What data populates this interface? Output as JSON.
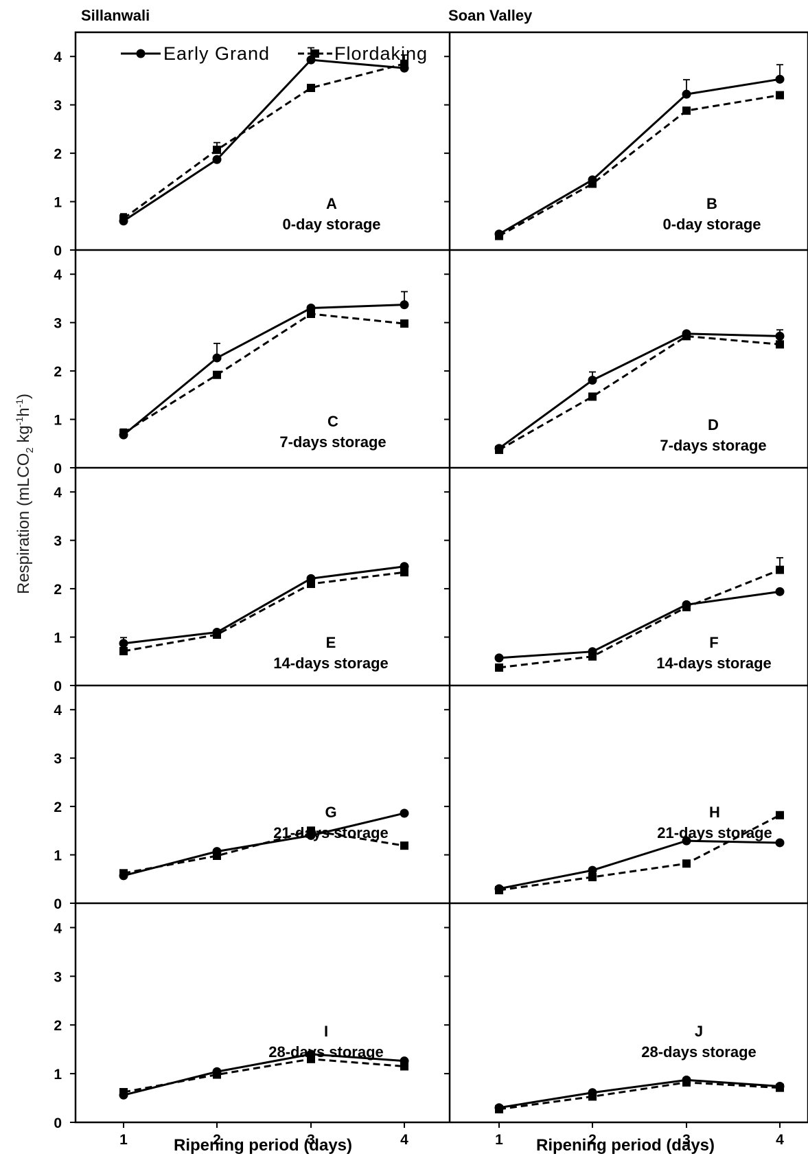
{
  "figure": {
    "ylabel_main": "Respiration (mLCO",
    "ylabel_sub": "2",
    "ylabel_unit_a": " kg",
    "ylabel_sup1": "-1",
    "ylabel_unit_b": "h",
    "ylabel_sup2": "-1",
    "ylabel_close": ")",
    "columns": [
      "Sillanwali",
      "Soan Valley"
    ],
    "xlabel": "Ripening period (days)"
  },
  "legend": {
    "series": [
      "Early Grand",
      "Flordaking"
    ]
  },
  "colors": {
    "line": "#000000",
    "background": "#ffffff"
  },
  "chart_data": [
    {
      "type": "line",
      "panel": "A",
      "location": "Sillanwali",
      "storage": "0-day storage",
      "x": [
        1,
        2,
        3,
        4
      ],
      "ylim": [
        0,
        4.5
      ],
      "yticks": [
        0,
        1,
        2,
        3,
        4
      ],
      "series": [
        {
          "name": "Early Grand",
          "style": "solid",
          "marker": "circle",
          "values": [
            0.6,
            1.87,
            3.93,
            3.76
          ],
          "errors": [
            0.15,
            0.05,
            0.25,
            0.12
          ]
        },
        {
          "name": "Flordaking",
          "style": "dashed",
          "marker": "square",
          "values": [
            0.65,
            2.07,
            3.35,
            3.85
          ],
          "errors": [
            0.08,
            0.15,
            0.05,
            0.18
          ]
        }
      ]
    },
    {
      "type": "line",
      "panel": "B",
      "location": "Soan Valley",
      "storage": "0-day storage",
      "x": [
        1,
        2,
        3,
        4
      ],
      "ylim": [
        0,
        4.5
      ],
      "yticks": [
        0,
        1,
        2,
        3,
        4
      ],
      "series": [
        {
          "name": "Early Grand",
          "style": "solid",
          "marker": "circle",
          "values": [
            0.33,
            1.45,
            3.22,
            3.53
          ],
          "errors": [
            0.04,
            0.05,
            0.3,
            0.3
          ]
        },
        {
          "name": "Flordaking",
          "style": "dashed",
          "marker": "square",
          "values": [
            0.29,
            1.37,
            2.88,
            3.2
          ],
          "errors": [
            0.03,
            0.04,
            0.06,
            0.05
          ]
        }
      ]
    },
    {
      "type": "line",
      "panel": "C",
      "location": "Sillanwali",
      "storage": "7-days storage",
      "x": [
        1,
        2,
        3,
        4
      ],
      "ylim": [
        0,
        4.5
      ],
      "yticks": [
        0,
        1,
        2,
        3,
        4
      ],
      "series": [
        {
          "name": "Early Grand",
          "style": "solid",
          "marker": "circle",
          "values": [
            0.68,
            2.27,
            3.3,
            3.37
          ],
          "errors": [
            0.12,
            0.3,
            0.05,
            0.27
          ]
        },
        {
          "name": "Flordaking",
          "style": "dashed",
          "marker": "square",
          "values": [
            0.72,
            1.92,
            3.18,
            2.98
          ],
          "errors": [
            0.05,
            0.05,
            0.05,
            0.05
          ]
        }
      ]
    },
    {
      "type": "line",
      "panel": "D",
      "location": "Soan Valley",
      "storage": "7-days storage",
      "x": [
        1,
        2,
        3,
        4
      ],
      "ylim": [
        0,
        4.5
      ],
      "yticks": [
        0,
        1,
        2,
        3,
        4
      ],
      "series": [
        {
          "name": "Early Grand",
          "style": "solid",
          "marker": "circle",
          "values": [
            0.4,
            1.81,
            2.77,
            2.72
          ],
          "errors": [
            0.03,
            0.17,
            0.03,
            0.13
          ]
        },
        {
          "name": "Flordaking",
          "style": "dashed",
          "marker": "square",
          "values": [
            0.37,
            1.47,
            2.72,
            2.55
          ],
          "errors": [
            0.03,
            0.05,
            0.03,
            0.05
          ]
        }
      ]
    },
    {
      "type": "line",
      "panel": "E",
      "location": "Sillanwali",
      "storage": "14-days storage",
      "x": [
        1,
        2,
        3,
        4
      ],
      "ylim": [
        0,
        4.5
      ],
      "yticks": [
        0,
        1,
        2,
        3,
        4
      ],
      "series": [
        {
          "name": "Early Grand",
          "style": "solid",
          "marker": "circle",
          "values": [
            0.87,
            1.1,
            2.21,
            2.46
          ],
          "errors": [
            0.12,
            0.04,
            0.04,
            0.04
          ]
        },
        {
          "name": "Flordaking",
          "style": "dashed",
          "marker": "square",
          "values": [
            0.71,
            1.05,
            2.1,
            2.34
          ],
          "errors": [
            0.05,
            0.04,
            0.04,
            0.04
          ]
        }
      ]
    },
    {
      "type": "line",
      "panel": "F",
      "location": "Soan Valley",
      "storage": "14-days storage",
      "x": [
        1,
        2,
        3,
        4
      ],
      "ylim": [
        0,
        4.5
      ],
      "yticks": [
        0,
        1,
        2,
        3,
        4
      ],
      "series": [
        {
          "name": "Early Grand",
          "style": "solid",
          "marker": "circle",
          "values": [
            0.57,
            0.7,
            1.67,
            1.94
          ],
          "errors": [
            0.03,
            0.03,
            0.04,
            0.03
          ]
        },
        {
          "name": "Flordaking",
          "style": "dashed",
          "marker": "square",
          "values": [
            0.37,
            0.6,
            1.62,
            2.39
          ],
          "errors": [
            0.03,
            0.03,
            0.03,
            0.25
          ]
        }
      ]
    },
    {
      "type": "line",
      "panel": "G",
      "location": "Sillanwali",
      "storage": "21-days storage",
      "x": [
        1,
        2,
        3,
        4
      ],
      "ylim": [
        0,
        4.5
      ],
      "yticks": [
        0,
        1,
        2,
        3,
        4
      ],
      "series": [
        {
          "name": "Early Grand",
          "style": "solid",
          "marker": "circle",
          "values": [
            0.57,
            1.07,
            1.4,
            1.86
          ],
          "errors": [
            0.12,
            0.04,
            0.04,
            0.03
          ]
        },
        {
          "name": "Flordaking",
          "style": "dashed",
          "marker": "square",
          "values": [
            0.62,
            0.98,
            1.5,
            1.19
          ],
          "errors": [
            0.05,
            0.04,
            0.04,
            0.04
          ]
        }
      ]
    },
    {
      "type": "line",
      "panel": "H",
      "location": "Soan Valley",
      "storage": "21-days storage",
      "x": [
        1,
        2,
        3,
        4
      ],
      "ylim": [
        0,
        4.5
      ],
      "yticks": [
        0,
        1,
        2,
        3,
        4
      ],
      "series": [
        {
          "name": "Early Grand",
          "style": "solid",
          "marker": "circle",
          "values": [
            0.3,
            0.68,
            1.29,
            1.25
          ],
          "errors": [
            0.03,
            0.03,
            0.03,
            0.03
          ]
        },
        {
          "name": "Flordaking",
          "style": "dashed",
          "marker": "square",
          "values": [
            0.27,
            0.54,
            0.82,
            1.82
          ],
          "errors": [
            0.03,
            0.03,
            0.03,
            0.05
          ]
        }
      ]
    },
    {
      "type": "line",
      "panel": "I",
      "location": "Sillanwali",
      "storage": "28-days storage",
      "x": [
        1,
        2,
        3,
        4
      ],
      "ylim": [
        0,
        4.5
      ],
      "yticks": [
        0,
        1,
        2,
        3,
        4
      ],
      "series": [
        {
          "name": "Early Grand",
          "style": "solid",
          "marker": "circle",
          "values": [
            0.56,
            1.04,
            1.4,
            1.26
          ],
          "errors": [
            0.12,
            0.04,
            0.04,
            0.04
          ]
        },
        {
          "name": "Flordaking",
          "style": "dashed",
          "marker": "square",
          "values": [
            0.62,
            0.98,
            1.3,
            1.15
          ],
          "errors": [
            0.05,
            0.04,
            0.04,
            0.04
          ]
        }
      ]
    },
    {
      "type": "line",
      "panel": "J",
      "location": "Soan Valley",
      "storage": "28-days storage",
      "x": [
        1,
        2,
        3,
        4
      ],
      "ylim": [
        0,
        4.5
      ],
      "yticks": [
        0,
        1,
        2,
        3,
        4
      ],
      "series": [
        {
          "name": "Early Grand",
          "style": "solid",
          "marker": "circle",
          "values": [
            0.3,
            0.61,
            0.87,
            0.74
          ],
          "errors": [
            0.03,
            0.03,
            0.03,
            0.03
          ]
        },
        {
          "name": "Flordaking",
          "style": "dashed",
          "marker": "square",
          "values": [
            0.27,
            0.53,
            0.82,
            0.71
          ],
          "errors": [
            0.03,
            0.03,
            0.03,
            0.03
          ]
        }
      ]
    }
  ]
}
